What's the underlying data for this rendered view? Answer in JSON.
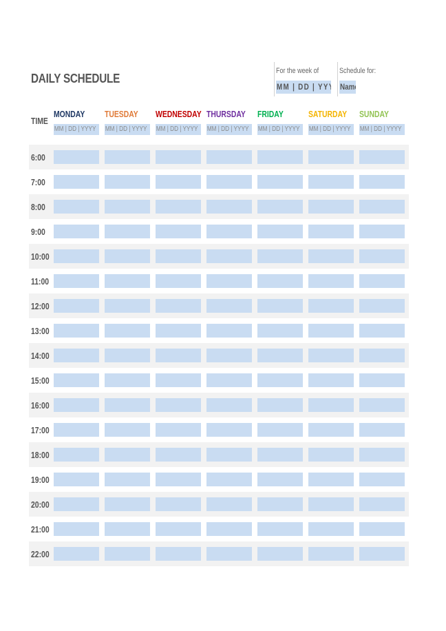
{
  "header": {
    "title": "DAILY SCHEDULE",
    "week_label": "For the week of",
    "week_value": "MM | DD | YYYY",
    "schedule_label": "Schedule for:",
    "schedule_value": "Name"
  },
  "grid": {
    "time_header": "TIME",
    "days": [
      {
        "name": "MONDAY",
        "date": "MM | DD | YYYY",
        "color": "#1f3864"
      },
      {
        "name": "TUESDAY",
        "date": "MM | DD | YYYY",
        "color": "#e07b39"
      },
      {
        "name": "WEDNESDAY",
        "date": "MM | DD | YYYY",
        "color": "#c00000"
      },
      {
        "name": "THURSDAY",
        "date": "MM | DD | YYYY",
        "color": "#7030a0"
      },
      {
        "name": "FRIDAY",
        "date": "MM | DD | YYYY",
        "color": "#00b050"
      },
      {
        "name": "SATURDAY",
        "date": "MM | DD | YYYY",
        "color": "#f4b400"
      },
      {
        "name": "SUNDAY",
        "date": "MM | DD | YYYY",
        "color": "#92c353"
      }
    ],
    "times": [
      "6:00",
      "7:00",
      "8:00",
      "9:00",
      "10:00",
      "11:00",
      "12:00",
      "13:00",
      "14:00",
      "15:00",
      "16:00",
      "17:00",
      "18:00",
      "19:00",
      "20:00",
      "21:00",
      "22:00"
    ]
  },
  "colors": {
    "input_fill": "#c9dcf2",
    "alt_row": "#f2f2f2",
    "text": "#555555"
  }
}
